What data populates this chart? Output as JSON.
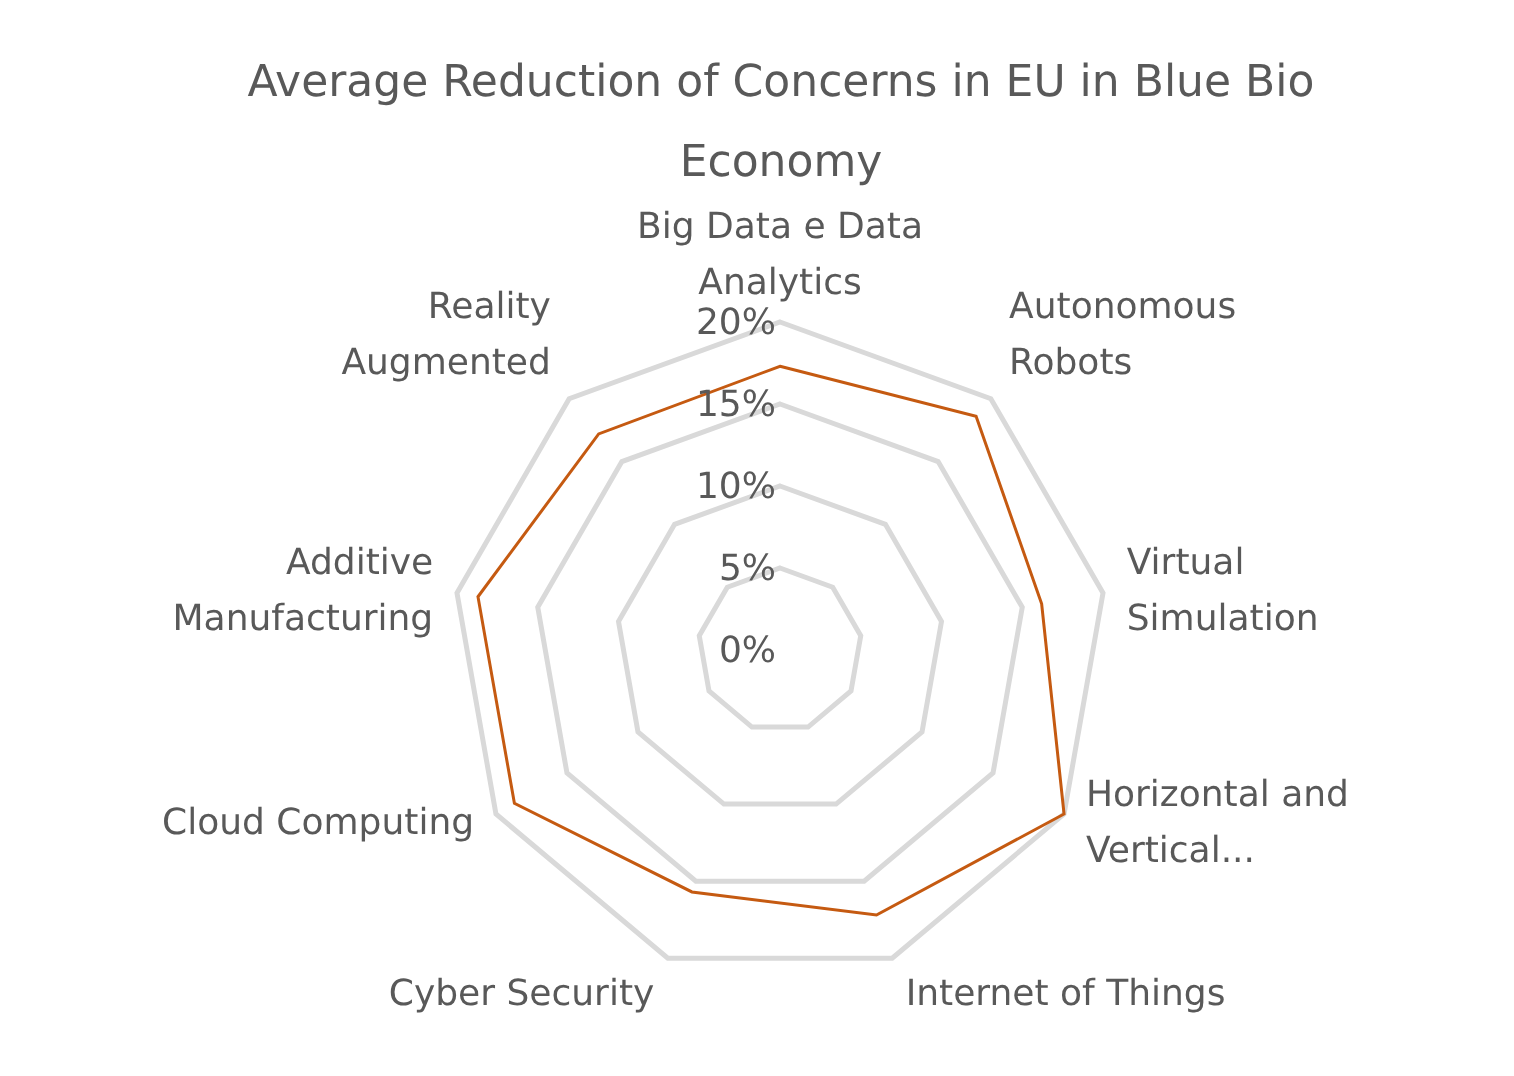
{
  "chart_data": {
    "type": "radar",
    "title": "Average Reduction of Concerns in EU in Blue Bio Economy",
    "categories": [
      "Big Data e Data Analytics",
      "Autonomous Robots",
      "Virtual Simulation",
      "Horizontal and Vertical...",
      "Internet of Things",
      "Cyber Security",
      "Cloud Computing",
      "Additive Manufacturing",
      "Reality Augmented"
    ],
    "series": [
      {
        "color": "#c55a11",
        "values": [
          17.3,
          18.6,
          16.2,
          20,
          17.2,
          15.7,
          18.7,
          18.7,
          17.2
        ]
      }
    ],
    "ylim": [
      0,
      20
    ],
    "yticks": [
      {
        "value": 0,
        "label": "0%"
      },
      {
        "value": 5,
        "label": "5%"
      },
      {
        "value": 10,
        "label": "10%"
      },
      {
        "value": 15,
        "label": "15%"
      },
      {
        "value": 20,
        "label": "20%"
      }
    ],
    "grid": true,
    "legend": false,
    "marker": "none"
  }
}
